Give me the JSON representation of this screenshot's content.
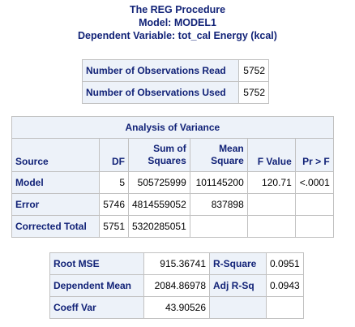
{
  "titles": {
    "procedure": "The REG Procedure",
    "model": "Model: MODEL1",
    "dependent": "Dependent Variable: tot_cal Energy (kcal)"
  },
  "observations": [
    {
      "label": "Number of Observations Read",
      "value": "5752"
    },
    {
      "label": "Number of Observations Used",
      "value": "5752"
    }
  ],
  "anova": {
    "title": "Analysis of Variance",
    "headers": {
      "source": "Source",
      "df": "DF",
      "ss_line1": "Sum of",
      "ss_line2": "Squares",
      "ms_line1": "Mean",
      "ms_line2": "Square",
      "f": "F Value",
      "p": "Pr > F"
    },
    "rows": [
      {
        "source": "Model",
        "df": "5",
        "ss": "505725999",
        "ms": "101145200",
        "f": "120.71",
        "p": "<.0001"
      },
      {
        "source": "Error",
        "df": "5746",
        "ss": "4814559052",
        "ms": "837898",
        "f": "",
        "p": ""
      },
      {
        "source": "Corrected Total",
        "df": "5751",
        "ss": "5320285051",
        "ms": "",
        "f": "",
        "p": ""
      }
    ]
  },
  "fit": [
    {
      "label": "Root MSE",
      "value": "915.36741",
      "label2": "R-Square",
      "value2": "0.0951"
    },
    {
      "label": "Dependent Mean",
      "value": "2084.86978",
      "label2": "Adj R-Sq",
      "value2": "0.0943"
    },
    {
      "label": "Coeff Var",
      "value": "43.90526",
      "label2": "",
      "value2": ""
    }
  ]
}
